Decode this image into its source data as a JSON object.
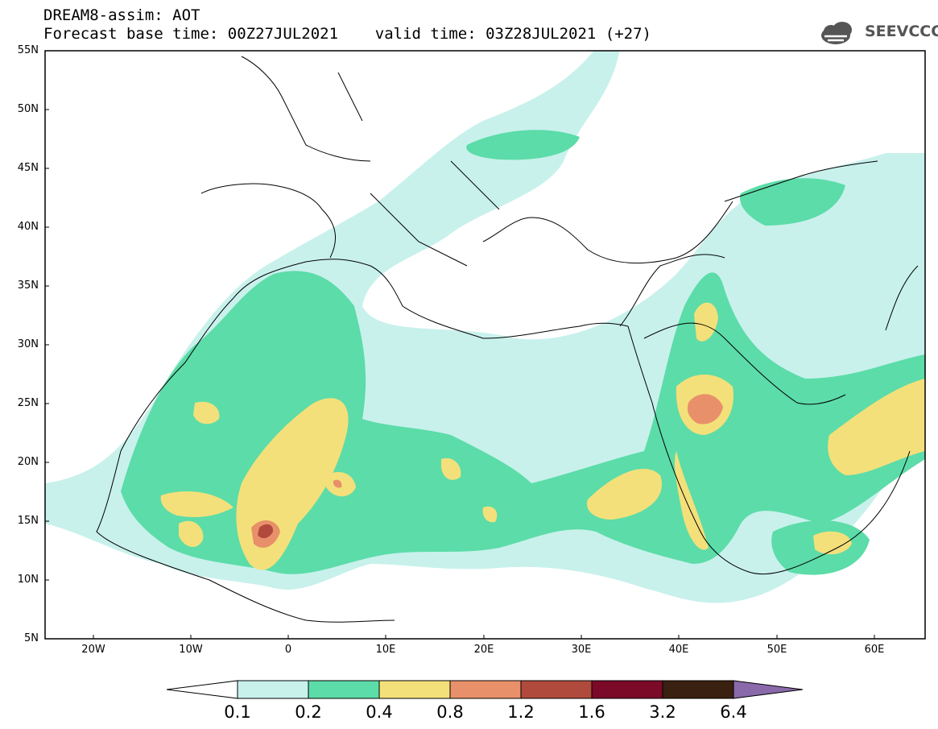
{
  "header": {
    "title_line1": "DREAM8-assim: AOT",
    "title_line2": "Forecast base time: 00Z27JUL2021    valid time: 03Z28JUL2021 (+27)",
    "logo_text": "SEEVCCC",
    "logo_icon": "cloud-logo-icon"
  },
  "map": {
    "lat_labels": [
      "55N",
      "50N",
      "45N",
      "40N",
      "35N",
      "30N",
      "25N",
      "20N",
      "15N",
      "10N",
      "5N"
    ],
    "lon_labels": [
      "20W",
      "10W",
      "0",
      "10E",
      "20E",
      "30E",
      "40E",
      "50E",
      "60E"
    ]
  },
  "colorbar": {
    "labels": [
      "0.1",
      "0.2",
      "0.4",
      "0.8",
      "1.2",
      "1.6",
      "3.2",
      "6.4"
    ],
    "colors": [
      "#ffffff",
      "#c8f1ec",
      "#5cdca8",
      "#f4e07a",
      "#e8906a",
      "#b04a3c",
      "#7a0a28",
      "#3a2010",
      "#8a6aaa"
    ]
  },
  "colors": {
    "c1": "#c8f1ec",
    "c2": "#5cdca8",
    "c3": "#f4e07a",
    "c4": "#e8906a",
    "c5": "#b04a3c"
  }
}
